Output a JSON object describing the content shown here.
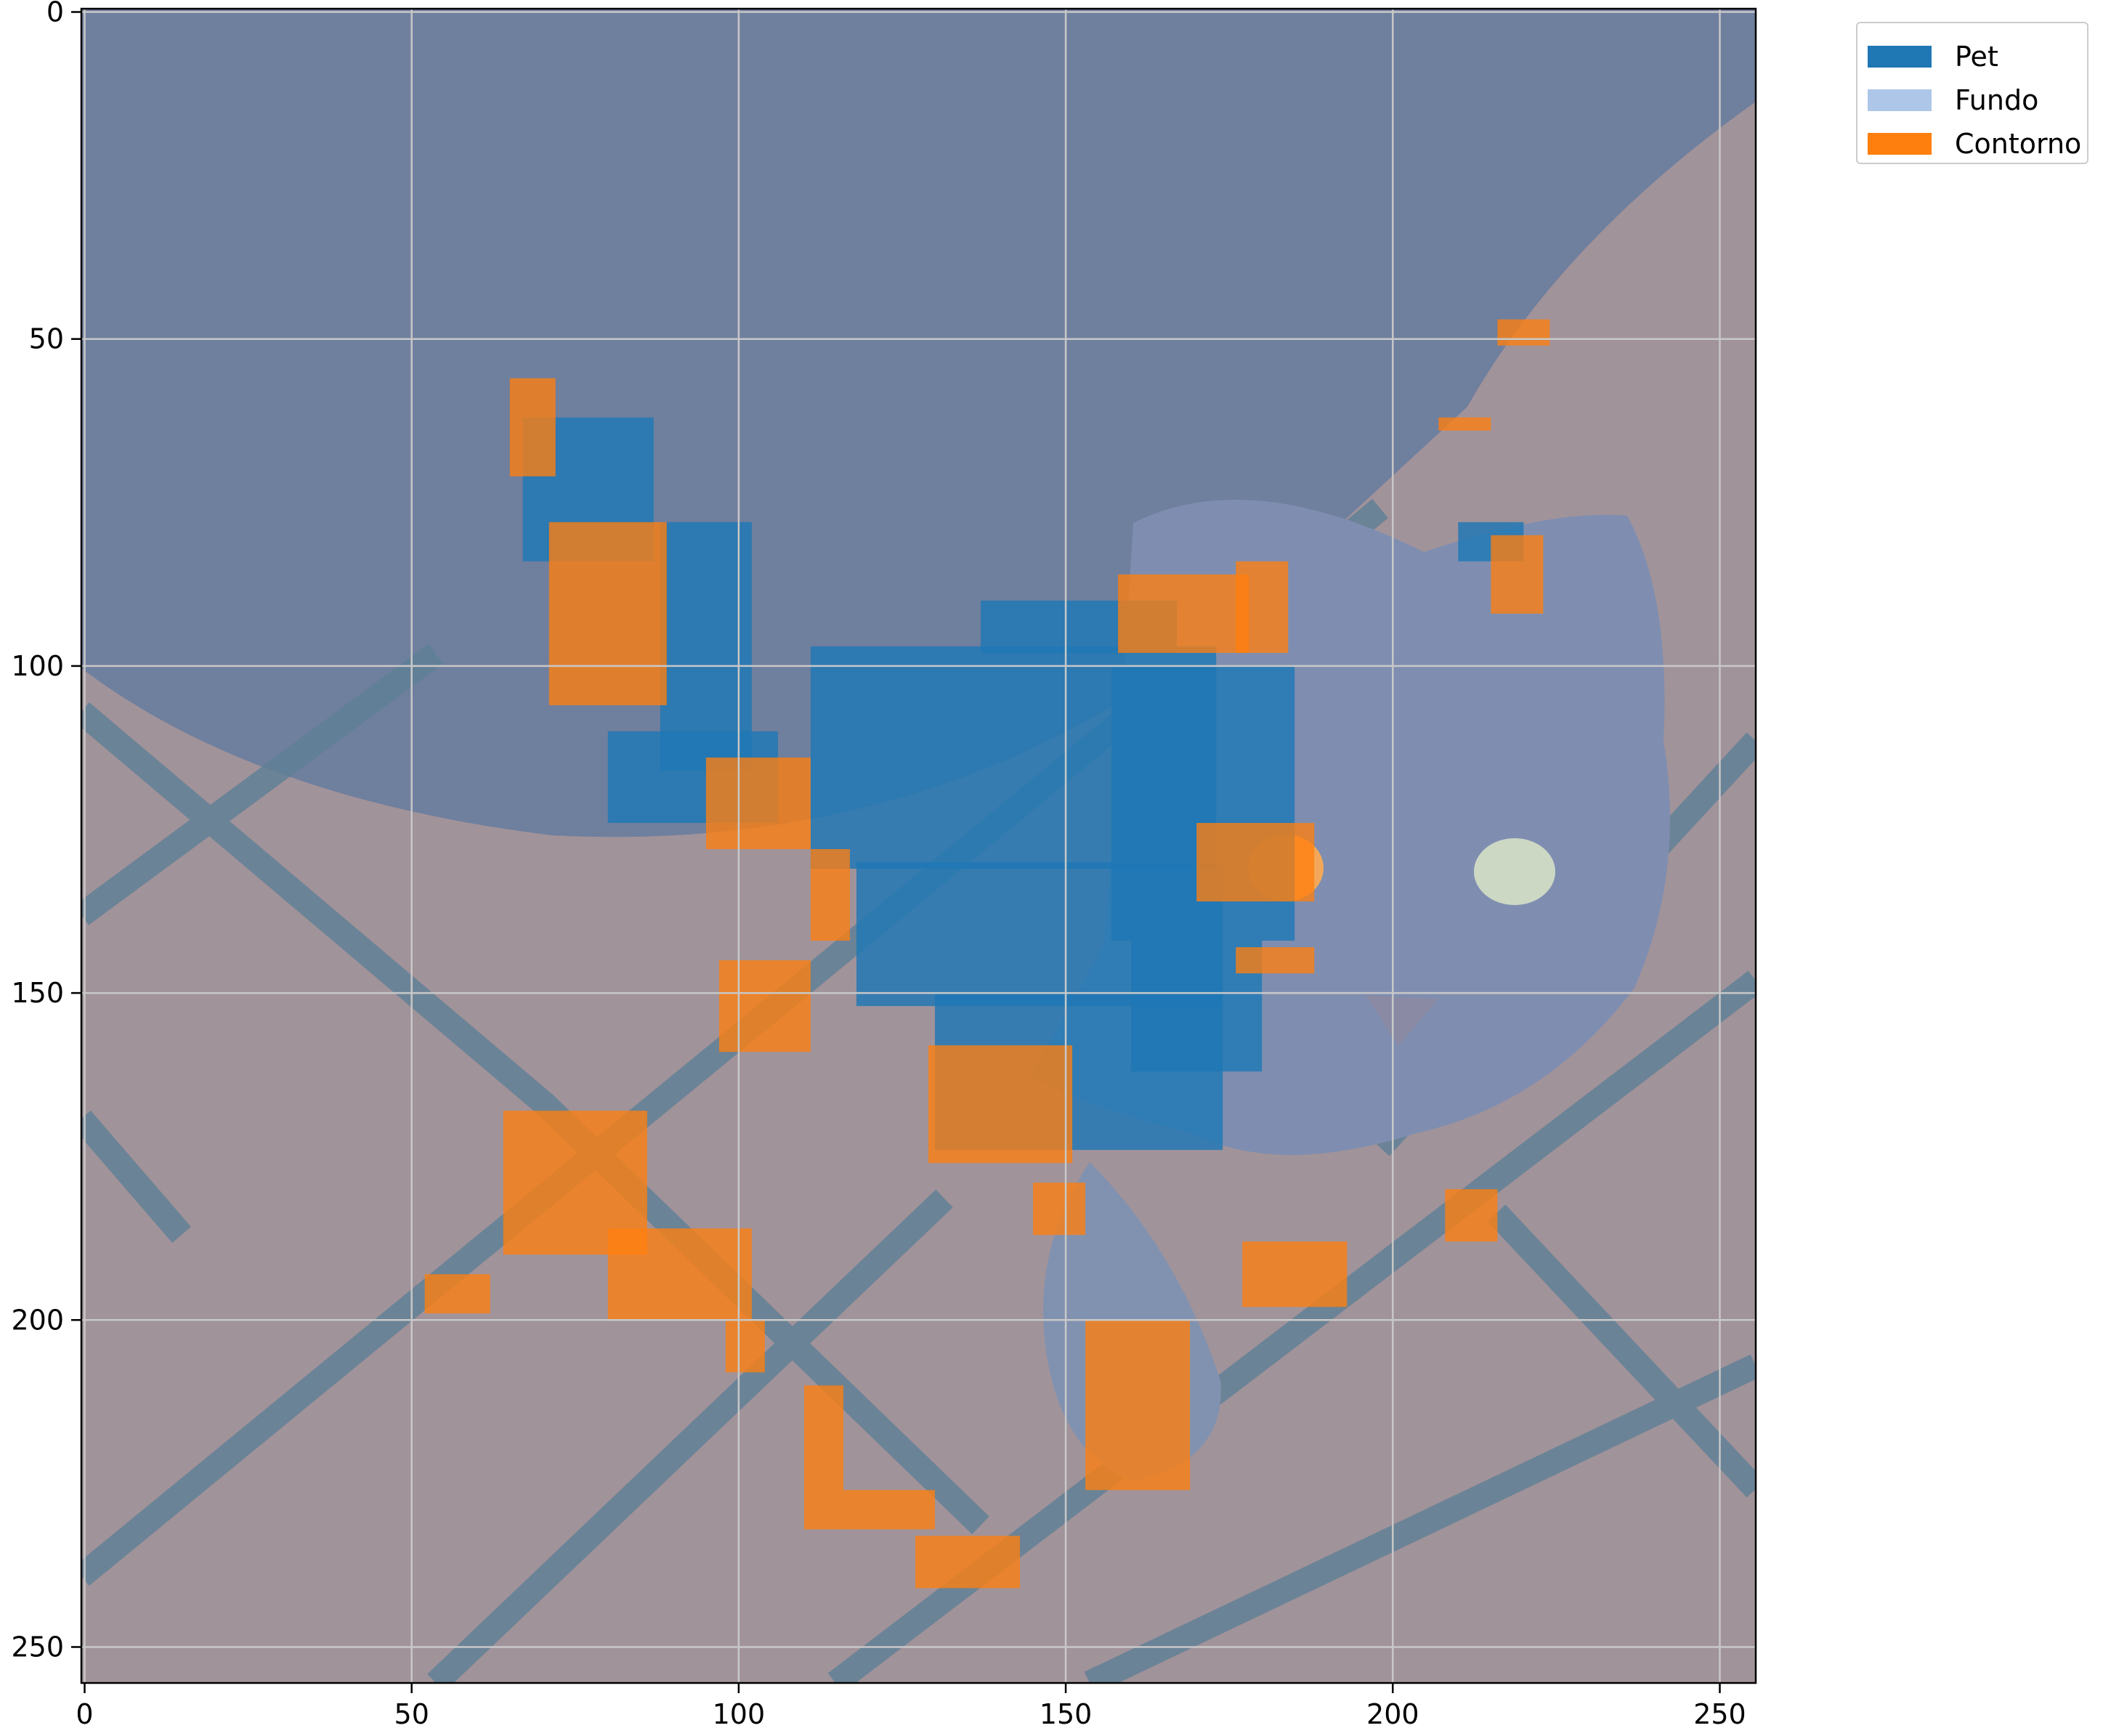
{
  "chart_data": {
    "type": "heatmap",
    "description_kind": "segmentation-mask-overlay",
    "title": "",
    "xlabel": "",
    "ylabel": "",
    "xlim": [
      -0.5,
      255.5
    ],
    "ylim": [
      255.5,
      -0.5
    ],
    "grid": true,
    "x_ticks": [
      0,
      50,
      100,
      150,
      200,
      250
    ],
    "y_ticks": [
      0,
      50,
      100,
      150,
      200,
      250
    ],
    "x_tick_labels": [
      "0",
      "50",
      "100",
      "150",
      "200",
      "250"
    ],
    "y_tick_labels": [
      "0",
      "50",
      "100",
      "150",
      "200",
      "250"
    ],
    "classes": [
      {
        "name": "Pet",
        "color": "#1f77b4"
      },
      {
        "name": "Fundo",
        "color": "#aec7e8"
      },
      {
        "name": "Contorno",
        "color": "#ff7f0e"
      }
    ],
    "legend_position": "outside-top-right",
    "pet_regions": [
      {
        "x": 67,
        "y": 62,
        "w": 20,
        "h": 22
      },
      {
        "x": 88,
        "y": 78,
        "w": 14,
        "h": 38
      },
      {
        "x": 80,
        "y": 110,
        "w": 26,
        "h": 14
      },
      {
        "x": 111,
        "y": 97,
        "w": 62,
        "h": 34
      },
      {
        "x": 118,
        "y": 130,
        "w": 56,
        "h": 22
      },
      {
        "x": 130,
        "y": 150,
        "w": 44,
        "h": 24
      },
      {
        "x": 157,
        "y": 100,
        "w": 28,
        "h": 42
      },
      {
        "x": 160,
        "y": 142,
        "w": 20,
        "h": 20
      },
      {
        "x": 137,
        "y": 90,
        "w": 30,
        "h": 8
      },
      {
        "x": 210,
        "y": 78,
        "w": 10,
        "h": 6
      }
    ],
    "contour_regions": [
      {
        "x": 65,
        "y": 56,
        "w": 7,
        "h": 15
      },
      {
        "x": 71,
        "y": 78,
        "w": 18,
        "h": 28
      },
      {
        "x": 95,
        "y": 114,
        "w": 16,
        "h": 14
      },
      {
        "x": 111,
        "y": 128,
        "w": 6,
        "h": 14
      },
      {
        "x": 97,
        "y": 145,
        "w": 14,
        "h": 14
      },
      {
        "x": 129,
        "y": 158,
        "w": 22,
        "h": 18
      },
      {
        "x": 158,
        "y": 86,
        "w": 20,
        "h": 12
      },
      {
        "x": 176,
        "y": 84,
        "w": 8,
        "h": 14
      },
      {
        "x": 170,
        "y": 124,
        "w": 18,
        "h": 12
      },
      {
        "x": 176,
        "y": 143,
        "w": 12,
        "h": 4
      },
      {
        "x": 64,
        "y": 168,
        "w": 22,
        "h": 22
      },
      {
        "x": 80,
        "y": 186,
        "w": 22,
        "h": 14
      },
      {
        "x": 52,
        "y": 193,
        "w": 10,
        "h": 6
      },
      {
        "x": 98,
        "y": 200,
        "w": 6,
        "h": 8
      },
      {
        "x": 110,
        "y": 210,
        "w": 6,
        "h": 22
      },
      {
        "x": 116,
        "y": 226,
        "w": 14,
        "h": 6
      },
      {
        "x": 127,
        "y": 233,
        "w": 16,
        "h": 8
      },
      {
        "x": 145,
        "y": 179,
        "w": 8,
        "h": 8
      },
      {
        "x": 153,
        "y": 200,
        "w": 16,
        "h": 26
      },
      {
        "x": 177,
        "y": 188,
        "w": 16,
        "h": 10
      },
      {
        "x": 208,
        "y": 180,
        "w": 8,
        "h": 8
      },
      {
        "x": 215,
        "y": 80,
        "w": 8,
        "h": 12
      },
      {
        "x": 216,
        "y": 47,
        "w": 8,
        "h": 4
      },
      {
        "x": 207,
        "y": 62,
        "w": 8,
        "h": 2
      }
    ]
  }
}
